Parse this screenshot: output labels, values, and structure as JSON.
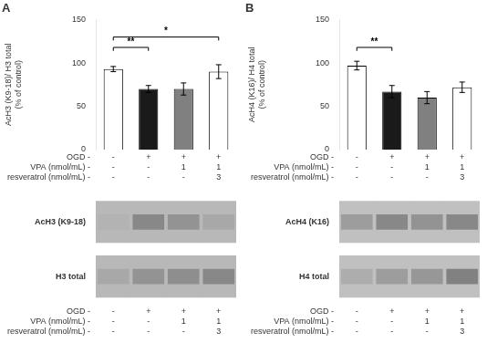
{
  "chart_data": [
    {
      "type": "bar",
      "title": "A",
      "y_label": "AcH3 (K9-18)/ H3 total\n(% of control)",
      "categories": [
        [
          "-",
          "-",
          "-"
        ],
        [
          "+",
          "-",
          "-"
        ],
        [
          "+",
          "1",
          "-"
        ],
        [
          "+",
          "1",
          "3"
        ]
      ],
      "category_rows": [
        "OGD -",
        "VPA (nmol/mL) -",
        "resveratrol (nmol/mL) -"
      ],
      "values": [
        93,
        70,
        70,
        90
      ],
      "errors": [
        3,
        4,
        7,
        8
      ],
      "colors": [
        "#ffffff",
        "#1a1a1a",
        "#808080",
        "#ffffff"
      ],
      "ylim": [
        0,
        150
      ],
      "yticks": [
        0,
        50,
        100,
        150
      ],
      "grid": false,
      "annotations": [
        {
          "bars": [
            0,
            1
          ],
          "y": 118,
          "label": "**"
        },
        {
          "bars": [
            0,
            3
          ],
          "y": 130,
          "label": "*"
        }
      ]
    },
    {
      "type": "bar",
      "title": "B",
      "y_label": "AcH4 (K16)/ H4 total\n(% of control)",
      "categories": [
        [
          "-",
          "-",
          "-"
        ],
        [
          "+",
          "-",
          "-"
        ],
        [
          "+",
          "1",
          "-"
        ],
        [
          "+",
          "1",
          "3"
        ]
      ],
      "category_rows": [
        "OGD -",
        "VPA (nmol/mL) -",
        "resveratrol (nmol/mL) -"
      ],
      "values": [
        97,
        67,
        60,
        72
      ],
      "errors": [
        5,
        7,
        7,
        6
      ],
      "colors": [
        "#ffffff",
        "#1a1a1a",
        "#808080",
        "#ffffff"
      ],
      "ylim": [
        0,
        150
      ],
      "yticks": [
        0,
        50,
        100,
        150
      ],
      "grid": false,
      "annotations": [
        {
          "bars": [
            0,
            1
          ],
          "y": 118,
          "label": "**"
        }
      ]
    },
    {
      "type": "heatmap",
      "categories": [
        [
          "-",
          "-",
          "-"
        ],
        [
          "+",
          "-",
          "-"
        ],
        [
          "+",
          "1",
          "-"
        ],
        [
          "+",
          "1",
          "3"
        ]
      ],
      "category_rows": [
        "OGD -",
        "VPA (nmol/mL) -",
        "resveratrol (nmol/mL) -"
      ],
      "rows": [
        "AcH3 (K9-18)",
        "H3 total"
      ],
      "cells": [
        [
          0.35,
          0.55,
          0.5,
          0.4
        ],
        [
          0.4,
          0.5,
          0.52,
          0.55
        ]
      ],
      "color": "#b8b8b8"
    },
    {
      "type": "heatmap",
      "categories": [
        [
          "-",
          "-",
          "-"
        ],
        [
          "+",
          "-",
          "-"
        ],
        [
          "+",
          "1",
          "-"
        ],
        [
          "+",
          "1",
          "3"
        ]
      ],
      "category_rows": [
        "OGD -",
        "VPA (nmol/mL) -",
        "resveratrol (nmol/mL) -"
      ],
      "rows": [
        "AcH4 (K16)",
        "H4 total"
      ],
      "cells": [
        [
          0.45,
          0.55,
          0.5,
          0.55
        ],
        [
          0.38,
          0.45,
          0.48,
          0.58
        ]
      ],
      "color": "#c0c0c0"
    }
  ]
}
